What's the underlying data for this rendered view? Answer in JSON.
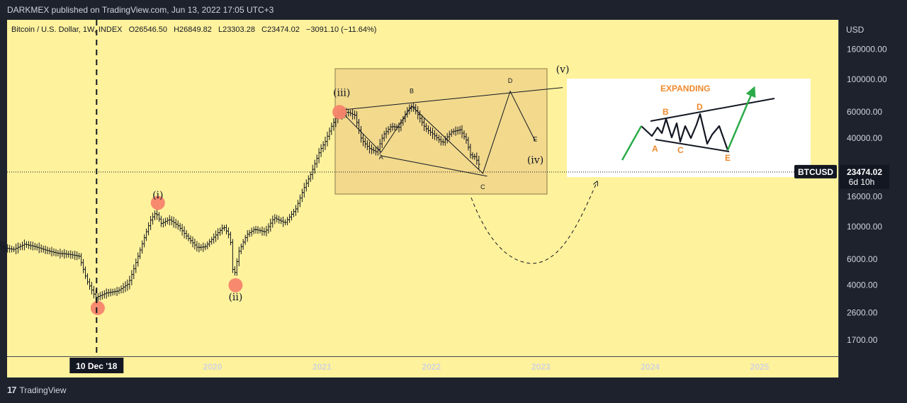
{
  "header": {
    "published_line": "DARKMEX published on TradingView.com, Jun 13, 2022 17:05 UTC+3"
  },
  "symbol_line": {
    "name": "Bitcoin / U.S. Dollar, 1W, INDEX",
    "open": "O26546.50",
    "high": "H26849.82",
    "low": "L23303.28",
    "close": "C23474.02",
    "change": "−3091.10 (−11.64%)"
  },
  "footer": {
    "brand_mark": "17",
    "brand_text": "TradingView"
  },
  "colors": {
    "page_bg": "#1e222d",
    "chart_bg": "#fff29c",
    "box_fill": "#f2d98c",
    "marker": "#f7846c",
    "price_tag_bg": "#131722",
    "candle": "#131722",
    "arrow_green": "#2cab4a",
    "label_orange": "#f0892d"
  },
  "chart_data": {
    "type": "line",
    "symbol": "BTCUSD",
    "interval": "1W",
    "y_scale": "log",
    "y_unit": "USD",
    "y_ticks": [
      "160000.00",
      "100000.00",
      "60000.00",
      "40000.00",
      "16000.00",
      "10000.00",
      "6000.00",
      "4000.00",
      "2600.00",
      "1700.00"
    ],
    "y_tick_values": [
      160000,
      100000,
      60000,
      40000,
      16000,
      10000,
      6000,
      4000,
      2600,
      1700
    ],
    "x_ticks": [
      "2020",
      "2021",
      "2022",
      "2023",
      "2024",
      "2025"
    ],
    "x_tick_years": [
      2020,
      2021,
      2022,
      2023,
      2024,
      2025
    ],
    "crosshair_label": "10 Dec '18",
    "crosshair_year": 2018.94,
    "last_price": "23474.02",
    "last_price_value": 23474.02,
    "last_price_symbol": "BTCUSD",
    "bar_countdown": "6d 10h",
    "series": [
      {
        "price_path": [
          [
            2017.78,
            11000
          ],
          [
            2017.85,
            9500
          ],
          [
            2017.92,
            8500
          ],
          [
            2018.0,
            8200
          ],
          [
            2018.1,
            7200
          ],
          [
            2018.2,
            7000
          ],
          [
            2018.3,
            7600
          ],
          [
            2018.4,
            7300
          ],
          [
            2018.5,
            6900
          ],
          [
            2018.6,
            6600
          ],
          [
            2018.7,
            6500
          ],
          [
            2018.8,
            6300
          ],
          [
            2018.87,
            4300
          ],
          [
            2018.95,
            3300
          ],
          [
            2019.05,
            3550
          ],
          [
            2019.15,
            3650
          ],
          [
            2019.25,
            4100
          ],
          [
            2019.3,
            5200
          ],
          [
            2019.38,
            7800
          ],
          [
            2019.45,
            11000
          ],
          [
            2019.5,
            12500
          ],
          [
            2019.55,
            10500
          ],
          [
            2019.62,
            11200
          ],
          [
            2019.7,
            10200
          ],
          [
            2019.8,
            8300
          ],
          [
            2019.88,
            7200
          ],
          [
            2019.95,
            7300
          ],
          [
            2020.05,
            8800
          ],
          [
            2020.12,
            10000
          ],
          [
            2020.18,
            8500
          ],
          [
            2020.21,
            4400
          ],
          [
            2020.26,
            6800
          ],
          [
            2020.33,
            8800
          ],
          [
            2020.4,
            9600
          ],
          [
            2020.5,
            9200
          ],
          [
            2020.58,
            11500
          ],
          [
            2020.68,
            10600
          ],
          [
            2020.78,
            13200
          ],
          [
            2020.85,
            18000
          ],
          [
            2020.92,
            23000
          ],
          [
            2021.0,
            33000
          ],
          [
            2021.05,
            38000
          ],
          [
            2021.1,
            47000
          ],
          [
            2021.16,
            57000
          ],
          [
            2021.25,
            60000
          ],
          [
            2021.32,
            57000
          ],
          [
            2021.38,
            39000
          ],
          [
            2021.45,
            34000
          ],
          [
            2021.52,
            32000
          ],
          [
            2021.58,
            42000
          ],
          [
            2021.65,
            48000
          ],
          [
            2021.72,
            47000
          ],
          [
            2021.8,
            62000
          ],
          [
            2021.85,
            66000
          ],
          [
            2021.9,
            57000
          ],
          [
            2021.96,
            47000
          ],
          [
            2022.04,
            42000
          ],
          [
            2022.12,
            37000
          ],
          [
            2022.2,
            44000
          ],
          [
            2022.28,
            45500
          ],
          [
            2022.34,
            38500
          ],
          [
            2022.38,
            30000
          ],
          [
            2022.42,
            29800
          ],
          [
            2022.45,
            26500
          ],
          [
            2022.45,
            23474
          ]
        ]
      }
    ],
    "wave_labels": [
      {
        "text": "(i)",
        "date": 2019.5,
        "price": 12500
      },
      {
        "text": "(ii)",
        "date": 2020.21,
        "price": 4400
      },
      {
        "text": "(iii)",
        "date": 2021.18,
        "price": 62000
      },
      {
        "text": "(iv)",
        "date": 2022.95,
        "price": 27000
      },
      {
        "text": "(v)",
        "date": 2023.2,
        "price": 105000
      }
    ],
    "triangle_points": [
      {
        "text": "A",
        "date": 2021.54,
        "price": 32000
      },
      {
        "text": "B",
        "date": 2021.82,
        "price": 66000
      },
      {
        "text": "C",
        "date": 2022.47,
        "price": 23000
      },
      {
        "text": "D",
        "date": 2022.72,
        "price": 83000
      },
      {
        "text": "E",
        "date": 2022.95,
        "price": 38000
      }
    ],
    "inset": {
      "title": "EXPANDING",
      "labels": [
        "A",
        "B",
        "C",
        "D",
        "E"
      ]
    }
  }
}
